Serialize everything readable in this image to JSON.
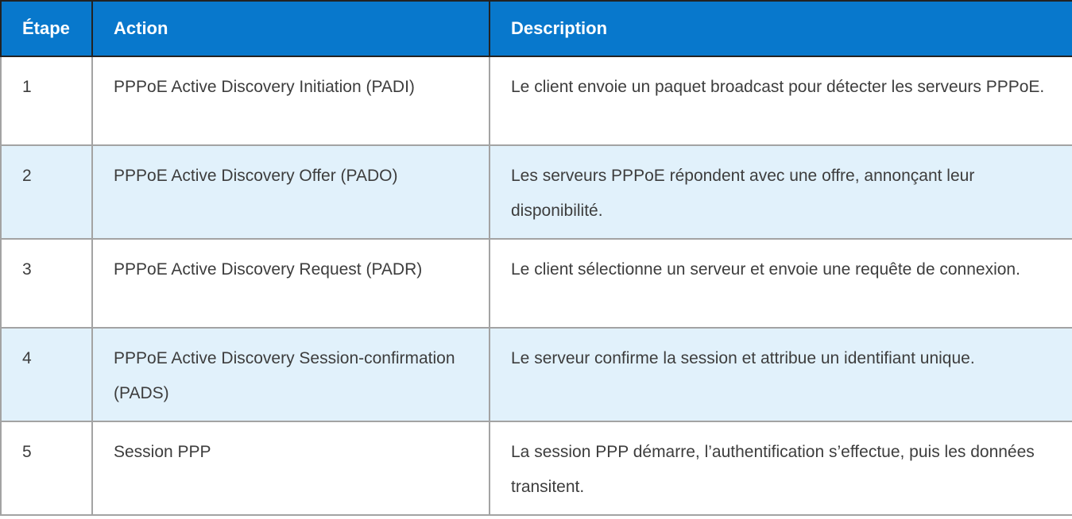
{
  "table": {
    "columns": [
      {
        "label": "Étape"
      },
      {
        "label": "Action"
      },
      {
        "label": "Description"
      }
    ],
    "rows": [
      {
        "step": "1",
        "action": "PPPoE Active Discovery Initiation (PADI)",
        "description": "Le client envoie un paquet broadcast pour détecter les serveurs PPPoE."
      },
      {
        "step": "2",
        "action": "PPPoE Active Discovery Offer (PADO)",
        "description": "Les serveurs PPPoE répondent avec une offre, annonçant leur disponibilité."
      },
      {
        "step": "3",
        "action": "PPPoE Active Discovery Request (PADR)",
        "description": "Le client sélectionne un serveur et envoie une requête de connexion."
      },
      {
        "step": "4",
        "action": "PPPoE Active Discovery Session-confirmation (PADS)",
        "description": "Le serveur confirme la session et attribue un identifiant unique."
      },
      {
        "step": "5",
        "action": "Session PPP",
        "description": "La session PPP démarre, l’authentification s’effectue, puis les données transitent."
      }
    ],
    "colors": {
      "header_bg": "#0878cc",
      "header_text": "#ffffff",
      "row_alt_bg": "#e1f1fb",
      "body_text": "#3d3d3d",
      "border_header": "#222222",
      "border_body": "#a3a3a3"
    }
  }
}
